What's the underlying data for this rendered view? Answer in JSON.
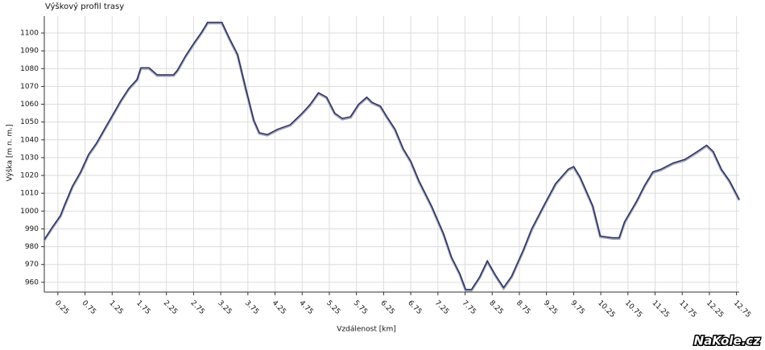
{
  "chart_data": {
    "type": "line",
    "title": "Výškový profil trasy",
    "xlabel": "Vzdálenost [km]",
    "ylabel": "Výška [m n. m.]",
    "x": [
      0,
      0.15,
      0.3,
      0.37,
      0.52,
      0.67,
      0.82,
      0.96,
      1.11,
      1.26,
      1.41,
      1.56,
      1.71,
      1.78,
      1.93,
      2.08,
      2.38,
      2.45,
      2.6,
      2.75,
      2.9,
      3.01,
      3.27,
      3.41,
      3.56,
      3.71,
      3.86,
      3.96,
      4.11,
      4.3,
      4.53,
      4.75,
      4.9,
      5.05,
      5.2,
      5.35,
      5.49,
      5.64,
      5.79,
      5.94,
      6.04,
      6.19,
      6.31,
      6.46,
      6.61,
      6.75,
      6.9,
      7.13,
      7.35,
      7.5,
      7.65,
      7.76,
      7.87,
      8.02,
      8.16,
      8.31,
      8.46,
      8.61,
      8.83,
      8.98,
      9.2,
      9.42,
      9.65,
      9.75,
      9.87,
      10.1,
      10.24,
      10.47,
      10.59,
      10.69,
      10.91,
      11.06,
      11.21,
      11.36,
      11.58,
      11.8,
      12.03,
      12.2,
      12.32,
      12.47,
      12.62,
      12.8
    ],
    "values": [
      984,
      991,
      997.5,
      1003,
      1014,
      1022,
      1032,
      1038,
      1046,
      1054,
      1062,
      1069,
      1074,
      1080.5,
      1080.5,
      1076.5,
      1076.5,
      1079,
      1087,
      1094,
      1100.5,
      1106,
      1106,
      1097,
      1088,
      1069,
      1051,
      1044,
      1043,
      1046,
      1048.5,
      1055,
      1060,
      1066.5,
      1064,
      1055,
      1052,
      1053,
      1060,
      1064,
      1061,
      1059,
      1053,
      1046,
      1035,
      1028,
      1017,
      1003,
      987.5,
      974,
      965,
      956,
      956,
      963,
      972,
      964,
      957,
      963.5,
      978.5,
      990,
      1003,
      1015.5,
      1023.5,
      1025,
      1019,
      1003,
      986,
      985,
      985,
      994,
      1005.5,
      1014.5,
      1022,
      1023.5,
      1027,
      1029,
      1033.5,
      1037,
      1033.5,
      1023.5,
      1017,
      1006.5
    ],
    "color": "#2b2e5c",
    "xlim": [
      0,
      12.8
    ],
    "ylim": [
      954.5,
      1109.5
    ],
    "xticks": [
      0.25,
      0.75,
      1.25,
      1.75,
      2.25,
      2.75,
      3.25,
      3.75,
      4.25,
      4.75,
      5.25,
      5.75,
      6.25,
      6.75,
      7.25,
      7.75,
      8.25,
      8.75,
      9.25,
      9.75,
      10.25,
      10.75,
      11.25,
      11.75,
      12.25,
      12.75
    ],
    "yticks": [
      960,
      970,
      980,
      990,
      1000,
      1010,
      1020,
      1030,
      1040,
      1050,
      1060,
      1070,
      1080,
      1090,
      1100
    ],
    "grid": true
  },
  "watermark": "NaKole.cz"
}
